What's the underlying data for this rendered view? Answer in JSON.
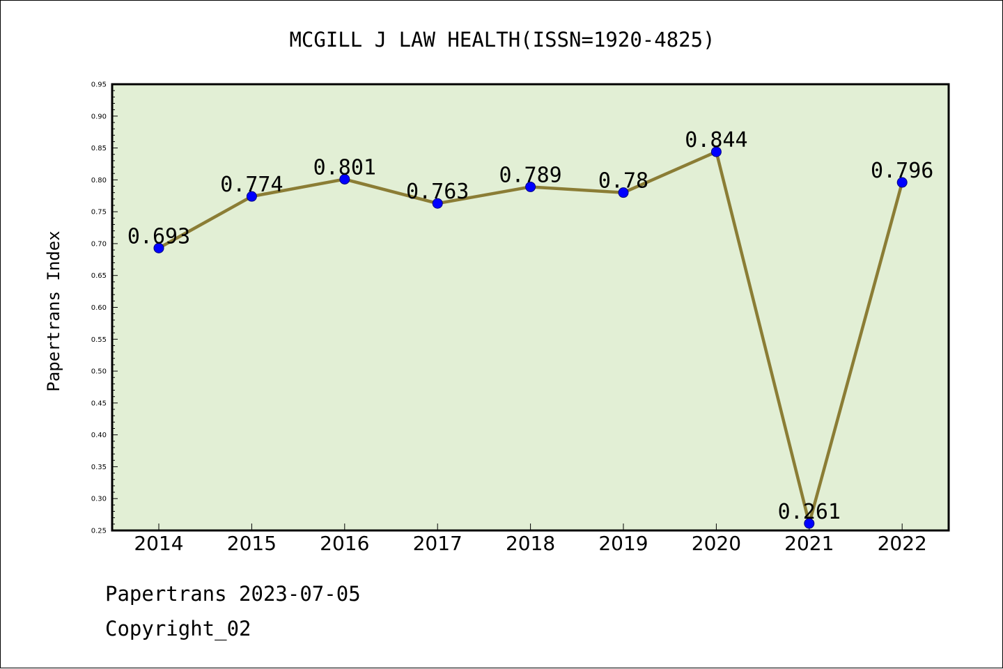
{
  "chart_data": {
    "type": "line",
    "title": "MCGILL J LAW HEALTH(ISSN=1920-4825)",
    "xlabel": "",
    "ylabel": "Papertrans Index",
    "categories": [
      "2014",
      "2015",
      "2016",
      "2017",
      "2018",
      "2019",
      "2020",
      "2021",
      "2022"
    ],
    "series": [
      {
        "values": [
          0.693,
          0.774,
          0.801,
          0.763,
          0.789,
          0.78,
          0.844,
          0.261,
          0.796
        ],
        "data_labels": [
          "0.693",
          "0.774",
          "0.801",
          "0.763",
          "0.789",
          "0.78",
          "0.844",
          "0.261",
          "0.796"
        ]
      }
    ],
    "ylim": [
      0.25,
      0.95
    ],
    "yticks": [
      "0.25",
      "0.30",
      "0.35",
      "0.40",
      "0.45",
      "0.50",
      "0.55",
      "0.60",
      "0.65",
      "0.70",
      "0.75",
      "0.80",
      "0.85",
      "0.90",
      "0.95"
    ],
    "grid": false,
    "legend": "none",
    "colors": {
      "plot_background": "#e2efd5",
      "line": "#8b7d35",
      "marker": "#0000ff",
      "axes": "#000000"
    }
  },
  "footer": {
    "line1": "Papertrans 2023-07-05",
    "line2": "Copyright_02"
  }
}
